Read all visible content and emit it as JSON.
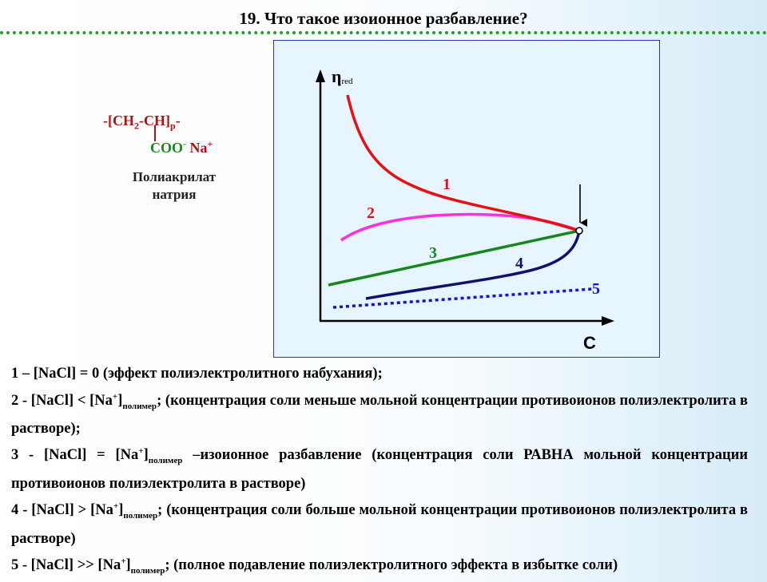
{
  "slide": {
    "title": "19. Что такое изоионное разбавление?"
  },
  "formula": {
    "chain_open": "-[CH",
    "chain_sub2": "2",
    "chain_mid": "-CH]",
    "chain_subp": "p",
    "chain_close": "-",
    "group": "COO",
    "group_charge": "-",
    "counter": " Na",
    "counter_charge": "+",
    "name_line1": "Полиакрилат",
    "name_line2": "натрия"
  },
  "diagram": {
    "y_axis_symbol": "η",
    "y_axis_sub": "red",
    "x_axis_label": "C",
    "curves": [
      {
        "label": "1",
        "color": "#e81010"
      },
      {
        "label": "2",
        "color": "#ff30e0"
      },
      {
        "label": "3",
        "color": "#16881a"
      },
      {
        "label": "4",
        "color": "#101070"
      },
      {
        "label": "5",
        "color": "#1414d8"
      }
    ]
  },
  "legend": {
    "line1": {
      "text": "1 – [NaCl] = 0 (эффект полиэлектролитного набухания);"
    },
    "line2": {
      "pre": "2 - [NaCl] < [Na",
      "sup": "+",
      "mid": "]",
      "sub": "полимер",
      "post": "; (концентрация соли меньше мольной концентрации противоионов полиэлектролита в растворе);"
    },
    "line3": {
      "pre": "3 - [NaCl] = [Na",
      "sup": "+",
      "mid": "]",
      "sub": "полимер",
      "post": " –изоионное разбавление (концентрация соли РАВНА мольной концентрации противоионов полиэлектролита в растворе)"
    },
    "line4": {
      "pre": "4 - [NaCl] > [Na",
      "sup": "+",
      "mid": "]",
      "sub": "полимер",
      "post": "; (концентрация соли больше мольной концентрации противоионов полиэлектролита в растворе)"
    },
    "line5": {
      "pre": "5 - [NaCl] >> [Na",
      "sup": "+",
      "mid": "]",
      "sub": "полимер",
      "post": "; (полное подавление полиэлектролитного эффекта в избытке соли)"
    }
  }
}
